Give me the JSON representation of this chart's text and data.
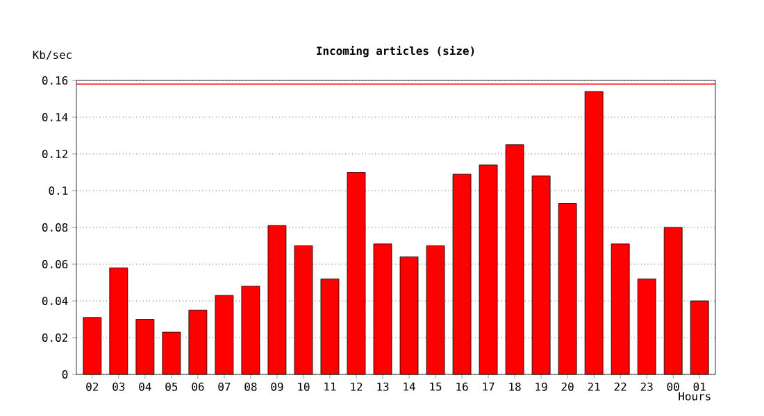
{
  "chart_data": {
    "type": "bar",
    "title": "Incoming articles (size)",
    "xlabel": "Hours",
    "ylabel": "Kb/sec",
    "categories": [
      "02",
      "03",
      "04",
      "05",
      "06",
      "07",
      "08",
      "09",
      "10",
      "11",
      "12",
      "13",
      "14",
      "15",
      "16",
      "17",
      "18",
      "19",
      "20",
      "21",
      "22",
      "23",
      "00",
      "01"
    ],
    "values": [
      0.031,
      0.058,
      0.03,
      0.023,
      0.035,
      0.043,
      0.048,
      0.081,
      0.07,
      0.052,
      0.11,
      0.071,
      0.064,
      0.07,
      0.109,
      0.114,
      0.125,
      0.108,
      0.093,
      0.154,
      0.071,
      0.052,
      0.08,
      0.04
    ],
    "color": "#ff0000",
    "ylim": [
      0,
      0.16
    ],
    "yticks": [
      0,
      0.02,
      0.04,
      0.06,
      0.08,
      0.1,
      0.12,
      0.14,
      0.16
    ],
    "grid": "y",
    "ref_lines": [
      {
        "axis": "y",
        "value": 0.158,
        "color": "#ff0000",
        "line_style": "solid"
      }
    ]
  }
}
